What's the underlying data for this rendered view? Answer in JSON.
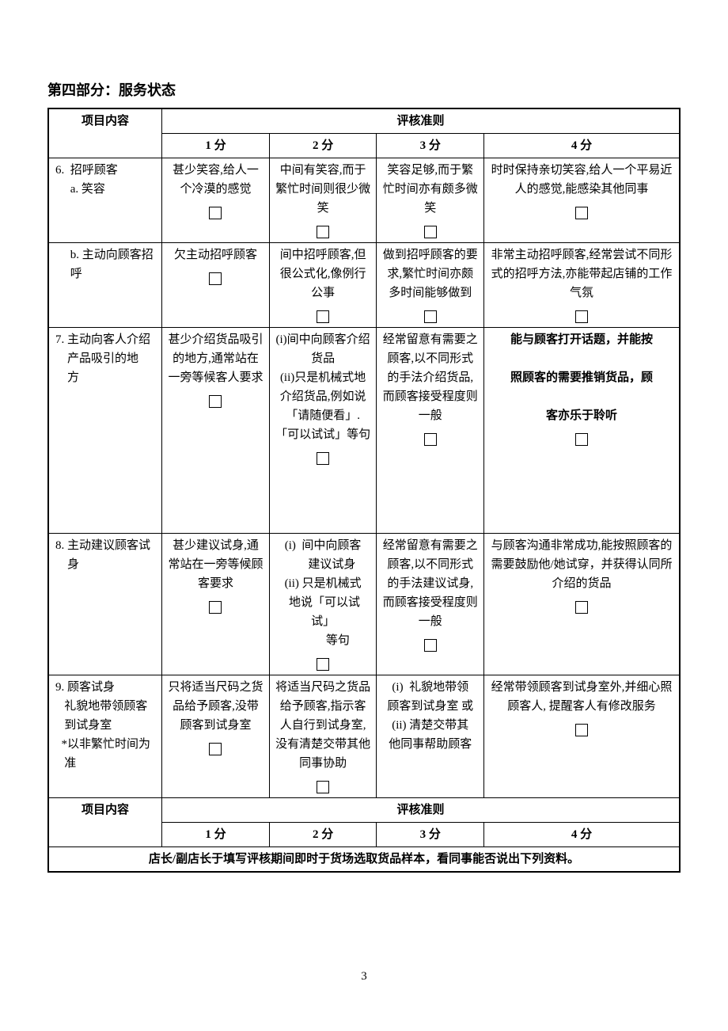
{
  "page": {
    "section_title": "第四部分：服务状态",
    "page_number": "3"
  },
  "colors": {
    "text": "#000000",
    "background": "#ffffff",
    "border": "#000000"
  },
  "fonts": {
    "body_family": "SimSun",
    "title_size_pt": 14,
    "cell_size_pt": 11
  },
  "table": {
    "col_widths_pct": [
      18,
      17,
      17,
      17,
      31
    ],
    "header1": {
      "item_label": "项目内容",
      "criteria_label": "评核准则",
      "scores": [
        "1 分",
        "2 分",
        "3 分",
        "4 分"
      ]
    },
    "rows": [
      {
        "label": "6.  招呼顾客\n     a. 笑容",
        "c1": "甚少笑容,给人一个冷漠的感觉",
        "c2": "中间有笑容,而于繁忙时间则很少微笑",
        "c3": "笑容足够,而于繁忙时间亦有颇多微笑",
        "c4": "时时保持亲切笑容,给人一个平易近人的感觉,能感染其他同事",
        "c4_bold": false,
        "cb1": true,
        "cb2": true,
        "cb3": true,
        "cb4": true,
        "tall": false
      },
      {
        "label": "     b. 主动向顾客招\n     呼",
        "c1": "欠主动招呼顾客",
        "c2": "间中招呼顾客,但很公式化,像例行公事",
        "c3": "做到招呼顾客的要求,繁忙时间亦颇多时间能够做到",
        "c4": "非常主动招呼顾客,经常尝试不同形式的招呼方法,亦能带起店铺的工作气氛",
        "c4_bold": false,
        "cb1": true,
        "cb2": true,
        "cb3": true,
        "cb4": true,
        "tall": false,
        "extra_blank": true
      },
      {
        "label": "7. 主动向客人介绍\n    产品吸引的地\n    方",
        "c1": "甚少介绍货品吸引的地方,通常站在一旁等候客人要求",
        "c2": "(i)间中向顾客介绍货品\n(ii)只是机械式地介绍货品,例如说「请随便看」.「可以试试」等句",
        "c3": "经常留意有需要之顾客,以不同形式的手法介绍货品,而顾客接受程度则一般",
        "c4": "能与顾客打开话题，并能按\n\n照顾客的需要推销货品，顾\n\n客亦乐于聆听",
        "c4_bold": true,
        "cb1": true,
        "cb2": true,
        "cb3": true,
        "cb4": true,
        "tall": true
      },
      {
        "label": "8. 主动建议顾客试\n    身",
        "c1": "甚少建议试身,通常站在一旁等候顾客要求",
        "c2": "(i)  间中向顾客\n      建议试身\n(ii) 只是机械式\n 地说「可以试试」\n          等句",
        "c3": "经常留意有需要之顾客,以不同形式的手法建议试身,而顾客接受程度则一般",
        "c4": "与顾客沟通非常成功,能按照顾客的需要鼓励他/她试穿，并获得认同所介绍的货品",
        "c4_bold": false,
        "cb1": true,
        "cb2": true,
        "cb3": true,
        "cb4": true,
        "tall": false
      },
      {
        "label": "9. 顾客试身\n   礼貌地带领顾客\n   到试身室\n  *以非繁忙时间为\n   准",
        "c1": "只将适当尺码之货品给予顾客,没带顾客到试身室",
        "c2": "将适当尺码之货品给予顾客,指示客人自行到试身室,没有清楚交带其他同事协助",
        "c3": "(i)  礼貌地带领\n顾客到试身室 或\n(ii) 清楚交带其\n他同事帮助顾客",
        "c4": "经常带领顾客到试身室外,并细心照顾客人, 提醒客人有修改服务",
        "c4_bold": false,
        "cb1": true,
        "cb2": true,
        "cb3": false,
        "cb4": true,
        "tall": false
      }
    ],
    "header2": {
      "item_label": "项目内容",
      "criteria_label": "评核准则",
      "scores": [
        "1 分",
        "2 分",
        "3 分",
        "4 分"
      ]
    },
    "footer_row": "店长/副店长于填写评核期间即时于货场选取货品样本，看同事能否说出下列资料。"
  }
}
